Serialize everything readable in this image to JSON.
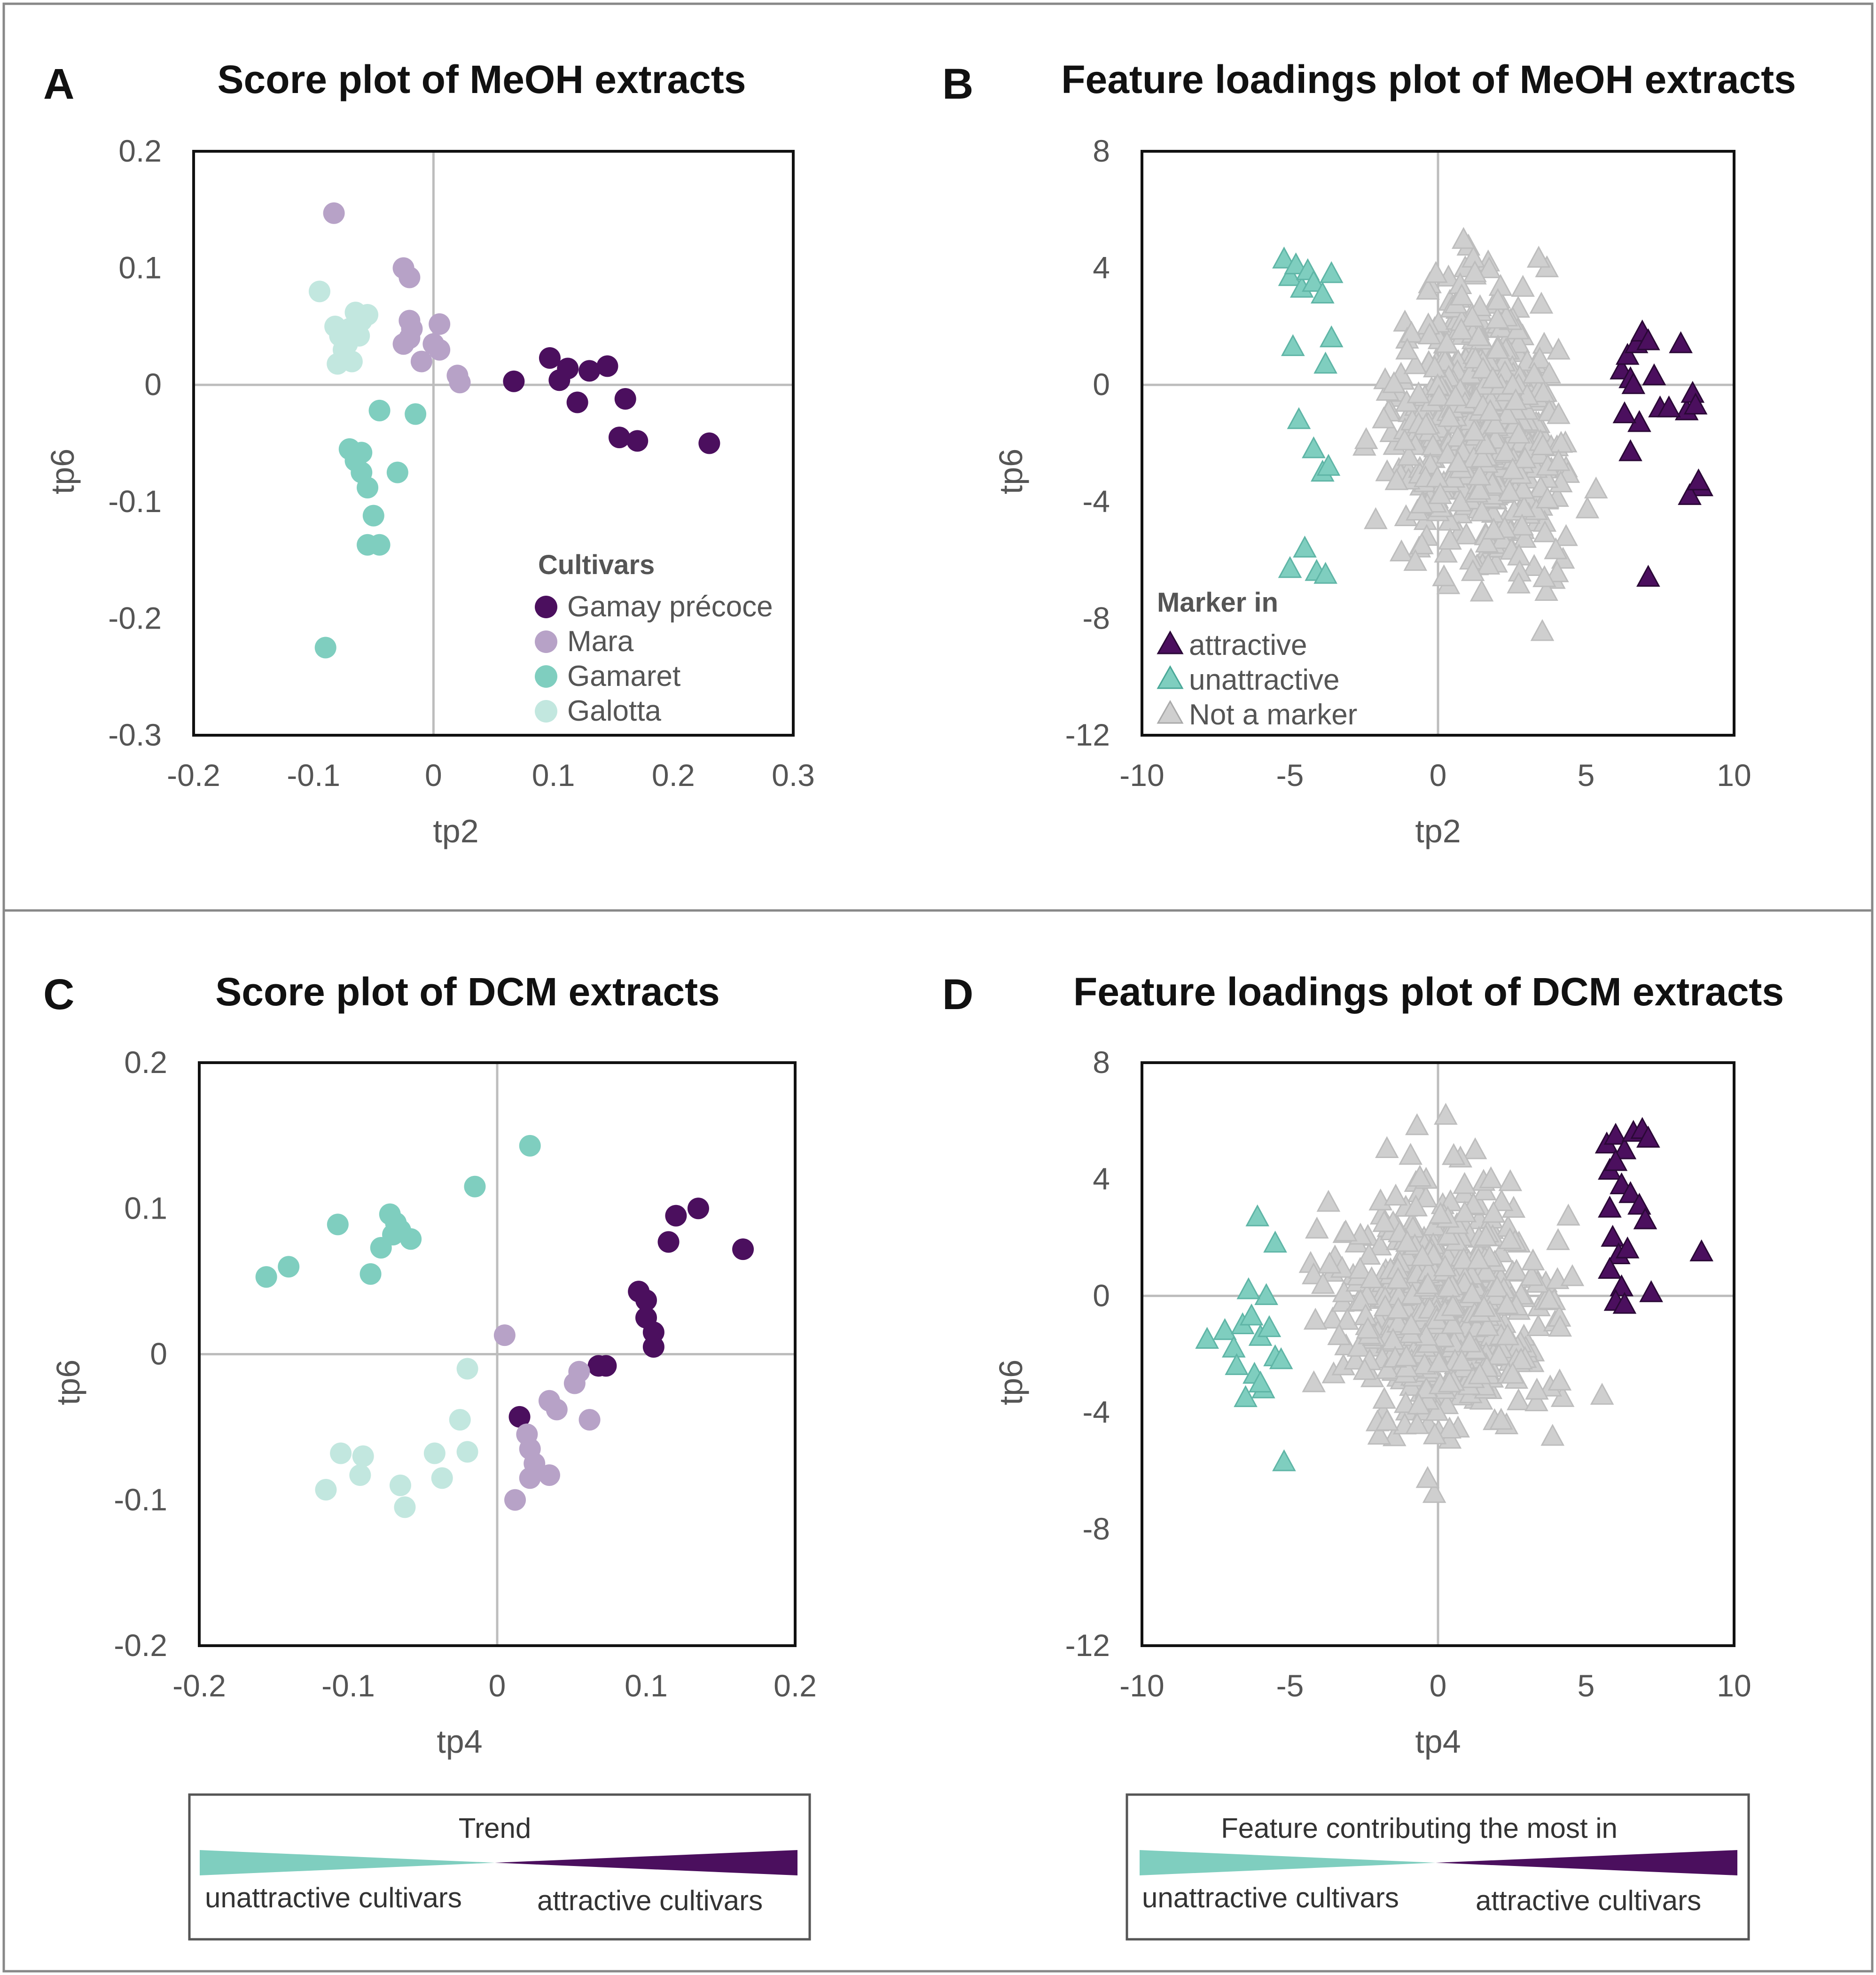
{
  "colors": {
    "attractive": "#4b0f5e",
    "mara": "#b7a2c7",
    "gamaret": "#7fcebf",
    "galotta": "#c2e7df",
    "not_marker": "#cfcfcf",
    "axis_line": "#bdbdbd",
    "frame": "#111111"
  },
  "chart_data": [
    {
      "panel": "A",
      "type": "scatter",
      "title": "Score plot of MeOH extracts",
      "xlabel": "tp2",
      "ylabel": "tp6",
      "xlim": [
        -0.2,
        0.3
      ],
      "ylim": [
        -0.3,
        0.2
      ],
      "xticks": [
        "-0.2",
        "-0.1",
        "0",
        "0.1",
        "0.2",
        "0.3"
      ],
      "yticks": [
        "0.2",
        "0.1",
        "0",
        "-0.1",
        "-0.2",
        "-0.3"
      ],
      "legend_title": "Cultivars",
      "legend_position": "bottom-right",
      "series": [
        {
          "name": "Gamay précoce",
          "color_key": "attractive",
          "x": [
            0.067,
            0.097,
            0.105,
            0.112,
            0.12,
            0.13,
            0.145,
            0.155,
            0.16,
            0.17,
            0.23
          ],
          "y": [
            0.003,
            0.023,
            0.004,
            0.014,
            -0.015,
            0.012,
            0.016,
            -0.045,
            -0.012,
            -0.048,
            -0.05
          ]
        },
        {
          "name": "Mara",
          "color_key": "mara",
          "x": [
            -0.083,
            -0.025,
            -0.02,
            -0.02,
            -0.018,
            -0.02,
            -0.025,
            -0.01,
            0.0,
            0.005,
            0.005,
            0.02,
            0.022
          ],
          "y": [
            0.147,
            0.1,
            0.092,
            0.055,
            0.048,
            0.04,
            0.035,
            0.02,
            0.035,
            0.052,
            0.03,
            0.008,
            0.002
          ]
        },
        {
          "name": "Gamaret",
          "color_key": "gamaret",
          "x": [
            -0.09,
            -0.07,
            -0.065,
            -0.06,
            -0.06,
            -0.055,
            -0.05,
            -0.045,
            -0.055,
            -0.045,
            -0.03,
            -0.015
          ],
          "y": [
            -0.225,
            -0.055,
            -0.065,
            -0.058,
            -0.075,
            -0.088,
            -0.112,
            -0.137,
            -0.137,
            -0.022,
            -0.075,
            -0.025
          ]
        },
        {
          "name": "Galotta",
          "color_key": "galotta",
          "x": [
            -0.095,
            -0.082,
            -0.078,
            -0.075,
            -0.07,
            -0.065,
            -0.06,
            -0.062,
            -0.068,
            -0.08,
            -0.072,
            -0.055
          ],
          "y": [
            0.08,
            0.05,
            0.042,
            0.03,
            0.048,
            0.062,
            0.055,
            0.042,
            0.02,
            0.018,
            0.035,
            0.06
          ]
        }
      ]
    },
    {
      "panel": "B",
      "type": "scatter",
      "title": "Feature loadings plot of MeOH extracts",
      "xlabel": "tp2",
      "ylabel": "tp6",
      "xlim": [
        -10,
        10
      ],
      "ylim": [
        -12,
        8
      ],
      "xticks": [
        "-10",
        "-5",
        "0",
        "5",
        "10"
      ],
      "yticks": [
        "8",
        "4",
        "0",
        "-4",
        "-8",
        "-12"
      ],
      "legend_title": "Marker in",
      "legend_position": "bottom-left",
      "background_cloud": {
        "name": "Not a marker",
        "color_key": "not_marker",
        "x_range": [
          -3.4,
          6.2
        ],
        "y_range": [
          -8.9,
          6.1
        ],
        "count": 620
      },
      "series": [
        {
          "name": "attractive",
          "color_key": "attractive",
          "x": [
            6.2,
            6.4,
            6.5,
            6.7,
            6.9,
            7.1,
            7.3,
            7.5,
            8.2,
            8.4,
            8.6,
            8.7,
            8.9,
            8.5,
            8.8,
            7.1,
            6.8,
            6.5,
            6.6,
            7.8,
            6.3
          ],
          "y": [
            0.5,
            1.0,
            0.2,
            1.4,
            1.8,
            1.5,
            0.3,
            -0.8,
            1.4,
            -0.9,
            -0.3,
            -0.7,
            -3.5,
            -3.8,
            -3.3,
            -6.6,
            -1.3,
            -2.3,
            0.0,
            -0.8,
            -1.0
          ]
        },
        {
          "name": "unattractive",
          "color_key": "gamaret",
          "x": [
            -5.2,
            -5.0,
            -4.8,
            -4.6,
            -4.4,
            -4.2,
            -3.9,
            -3.6,
            -4.9,
            -4.7,
            -5.0,
            -4.1,
            -3.8,
            -3.9,
            -4.2,
            -3.7,
            -4.5,
            -3.6,
            -3.8
          ],
          "y": [
            4.3,
            3.7,
            4.1,
            3.3,
            3.9,
            3.5,
            3.1,
            3.8,
            1.3,
            -1.2,
            -6.3,
            -6.4,
            -6.5,
            -3.0,
            -2.2,
            -2.8,
            -5.6,
            1.6,
            0.7
          ]
        }
      ]
    },
    {
      "panel": "C",
      "type": "scatter",
      "title": "Score plot of DCM extracts",
      "xlabel": "tp4",
      "ylabel": "tp6",
      "xlim": [
        -0.2,
        0.2
      ],
      "ylim": [
        -0.2,
        0.2
      ],
      "xticks": [
        "-0.2",
        "-0.1",
        "0",
        "0.1",
        "0.2"
      ],
      "yticks": [
        "0.2",
        "0.1",
        "0",
        "-0.1",
        "-0.2"
      ],
      "series": [
        {
          "name": "Gamay précoce",
          "color_key": "attractive",
          "x": [
            0.015,
            0.068,
            0.073,
            0.095,
            0.1,
            0.1,
            0.105,
            0.105,
            0.115,
            0.12,
            0.135,
            0.165
          ],
          "y": [
            -0.043,
            -0.008,
            -0.008,
            0.043,
            0.037,
            0.025,
            0.015,
            0.005,
            0.077,
            0.095,
            0.1,
            0.072
          ]
        },
        {
          "name": "Mara",
          "color_key": "mara",
          "x": [
            0.005,
            0.02,
            0.022,
            0.025,
            0.022,
            0.035,
            0.035,
            0.04,
            0.052,
            0.055,
            0.062,
            0.012
          ],
          "y": [
            0.013,
            -0.055,
            -0.065,
            -0.075,
            -0.085,
            -0.083,
            -0.032,
            -0.038,
            -0.02,
            -0.012,
            -0.045,
            -0.1
          ]
        },
        {
          "name": "Gamaret",
          "color_key": "gamaret",
          "x": [
            -0.155,
            -0.14,
            -0.107,
            -0.085,
            -0.078,
            -0.072,
            -0.07,
            -0.068,
            -0.065,
            -0.058,
            -0.015,
            0.022
          ],
          "y": [
            0.053,
            0.06,
            0.089,
            0.055,
            0.073,
            0.096,
            0.082,
            0.09,
            0.085,
            0.079,
            0.115,
            0.143
          ]
        },
        {
          "name": "Galotta",
          "color_key": "galotta",
          "x": [
            -0.115,
            -0.105,
            -0.092,
            -0.09,
            -0.065,
            -0.062,
            -0.042,
            -0.037,
            -0.025,
            -0.02,
            -0.02
          ],
          "y": [
            -0.093,
            -0.068,
            -0.083,
            -0.07,
            -0.09,
            -0.105,
            -0.068,
            -0.085,
            -0.045,
            -0.067,
            -0.01
          ]
        }
      ]
    },
    {
      "panel": "D",
      "type": "scatter",
      "title": "Feature loadings plot of DCM extracts",
      "xlabel": "tp4",
      "ylabel": "tp6",
      "xlim": [
        -10,
        10
      ],
      "ylim": [
        -12,
        8
      ],
      "xticks": [
        "-10",
        "-5",
        "0",
        "5",
        "10"
      ],
      "yticks": [
        "8",
        "4",
        "0",
        "-4",
        "-8",
        "-12"
      ],
      "background_cloud": {
        "name": "Not a marker",
        "color_key": "not_marker",
        "x_range": [
          -5.4,
          5.9
        ],
        "y_range": [
          -7.5,
          6.5
        ],
        "count": 620
      },
      "series": [
        {
          "name": "attractive",
          "color_key": "attractive",
          "x": [
            5.7,
            6.0,
            6.3,
            6.6,
            6.9,
            7.1,
            5.8,
            6.0,
            6.2,
            6.5,
            6.8,
            7.0,
            5.9,
            6.1,
            6.4,
            5.8,
            6.2,
            6.0,
            7.2,
            8.9,
            6.3,
            5.8
          ],
          "y": [
            5.2,
            5.5,
            5.0,
            5.6,
            5.7,
            5.4,
            4.3,
            4.6,
            3.8,
            3.5,
            3.1,
            2.6,
            2.0,
            1.4,
            1.6,
            0.9,
            0.3,
            -0.2,
            0.1,
            1.5,
            -0.3,
            3.0
          ]
        },
        {
          "name": "unattractive",
          "color_key": "gamaret",
          "x": [
            -7.8,
            -7.2,
            -6.9,
            -6.6,
            -6.3,
            -6.0,
            -5.7,
            -5.5,
            -6.8,
            -6.2,
            -5.9,
            -6.5,
            -6.0,
            -5.3,
            -5.8,
            -6.4,
            -5.2,
            -6.1,
            -5.5
          ],
          "y": [
            -1.5,
            -1.2,
            -1.8,
            -1.0,
            -0.7,
            -1.4,
            -1.1,
            -2.1,
            -2.4,
            -2.7,
            -3.2,
            -3.5,
            -3.0,
            -2.2,
            0.0,
            0.2,
            -5.7,
            2.7,
            1.8
          ]
        }
      ]
    }
  ],
  "panelA": {
    "letter": "A",
    "legend_items": [
      "Gamay précoce",
      "Mara",
      "Gamaret",
      "Galotta"
    ]
  },
  "panelB": {
    "letter": "B",
    "legend_items": [
      "attractive",
      "unattractive",
      "Not a marker"
    ]
  },
  "panelC": {
    "letter": "C"
  },
  "panelD": {
    "letter": "D"
  },
  "trend_box": {
    "title": "Trend",
    "left_label": "unattractive cultivars",
    "right_label": "attractive cultivars"
  },
  "feature_box": {
    "title": "Feature contributing the most in",
    "left_label": "unattractive cultivars",
    "right_label": "attractive cultivars"
  }
}
